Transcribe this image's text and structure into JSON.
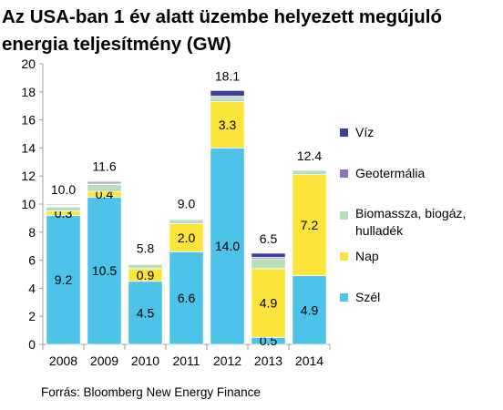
{
  "title": "Az USA-ban 1 év alatt üzembe helyezett megújuló energia teljesítmény (GW)",
  "source": "Forrás: Bloomberg New Energy Finance",
  "chart_data": {
    "type": "bar",
    "stacked": true,
    "categories": [
      "2008",
      "2009",
      "2010",
      "2011",
      "2012",
      "2013",
      "2014"
    ],
    "ylim": [
      0,
      20
    ],
    "yticks": [
      0,
      2,
      4,
      6,
      8,
      10,
      12,
      14,
      16,
      18,
      20
    ],
    "grid": false,
    "legend_position": "right",
    "totals": [
      "10.0",
      "11.6",
      "5.8",
      "9.0",
      "18.1",
      "6.5",
      "12.4"
    ],
    "series": [
      {
        "name": "Szél",
        "color": "#4dc3ea",
        "values": [
          9.2,
          10.5,
          4.5,
          6.6,
          14.0,
          0.5,
          4.9
        ],
        "labels": [
          "9.2",
          "10.5",
          "4.5",
          "6.6",
          "14.0",
          "0.5",
          "4.9"
        ]
      },
      {
        "name": "Nap",
        "color": "#fde43a",
        "values": [
          0.3,
          0.4,
          0.9,
          2.0,
          3.3,
          4.9,
          7.2
        ],
        "labels": [
          "0.3",
          "0.4",
          "0.9",
          "2.0",
          "3.3",
          "4.9",
          "7.2"
        ]
      },
      {
        "name": "Biomassza, biogáz, hulladék",
        "color": "#b8ddb9",
        "values": [
          0.3,
          0.5,
          0.3,
          0.3,
          0.3,
          0.7,
          0.3
        ],
        "labels": [
          "",
          "",
          "",
          "",
          "",
          "",
          ""
        ]
      },
      {
        "name": "Geotermália",
        "color": "#8f73b9",
        "values": [
          0.05,
          0.05,
          0.05,
          0.05,
          0.1,
          0.1,
          0.0
        ],
        "labels": [
          "",
          "",
          "",
          "",
          "",
          "",
          ""
        ]
      },
      {
        "name": "Víz",
        "color": "#3a3f99",
        "values": [
          0.05,
          0.1,
          0.05,
          0.05,
          0.4,
          0.3,
          0.0
        ],
        "labels": [
          "",
          "",
          "",
          "",
          "",
          "",
          ""
        ]
      },
      {
        "name": "",
        "color": "#c4c4c4",
        "values": [
          0.1,
          0.1,
          0.0,
          0.0,
          0.0,
          0.0,
          0.0
        ],
        "labels": [
          "",
          "",
          "",
          "",
          "",
          "",
          ""
        ]
      }
    ]
  }
}
